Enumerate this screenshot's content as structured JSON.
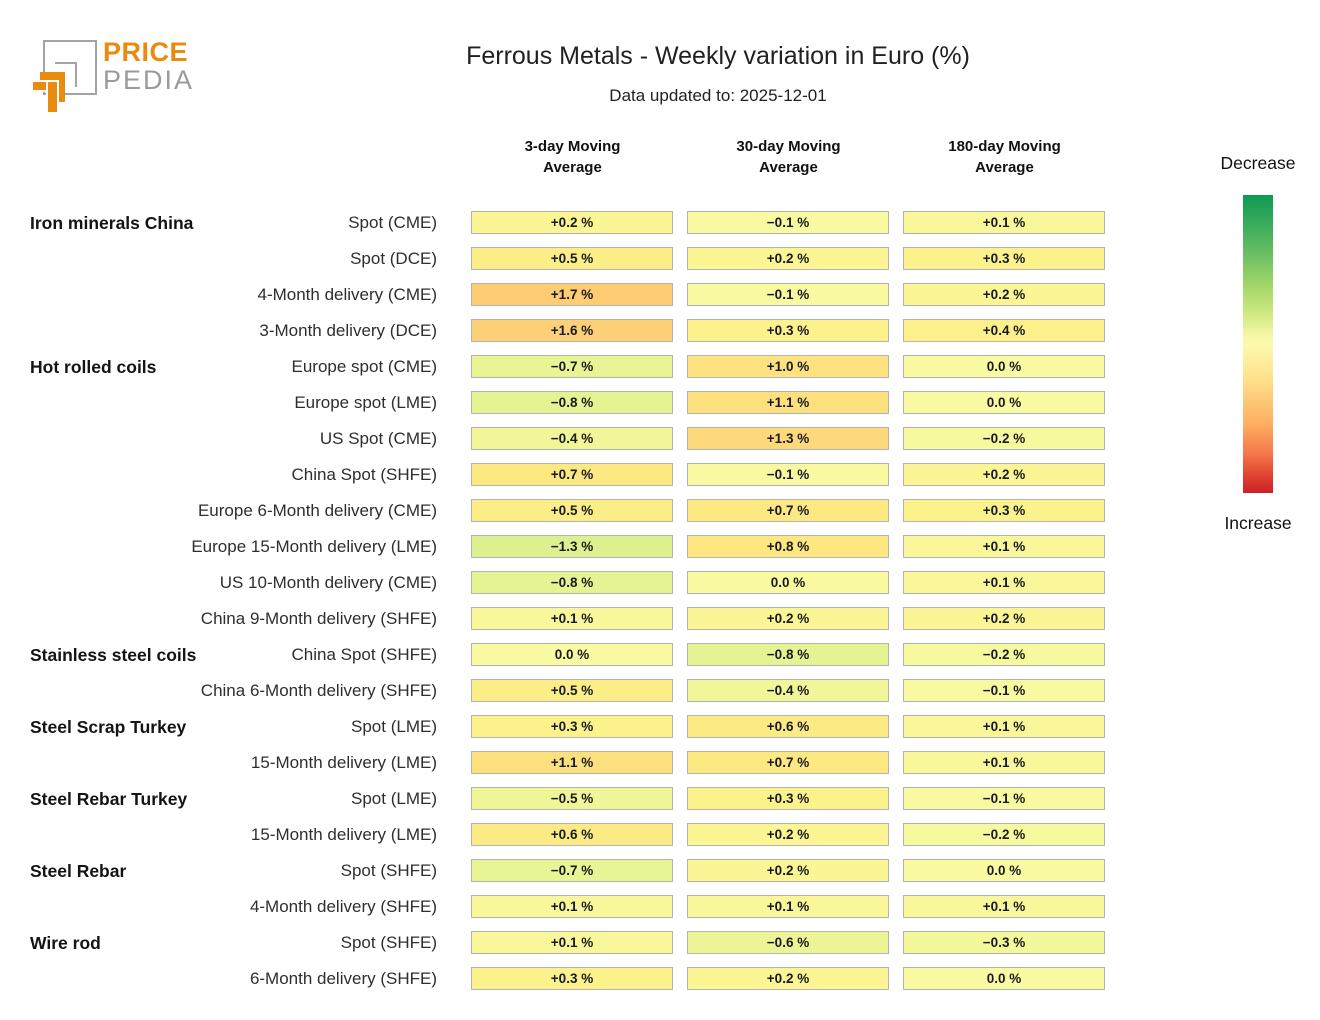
{
  "brand": {
    "name_top": "PRICE",
    "name_bottom": "PEDIA"
  },
  "colors": {
    "brand_orange": "#e98b0f",
    "brand_gray": "#9b9b9b",
    "cell_border": "#b3b3b3",
    "legend_green": "#0e9a54",
    "legend_mid_yellow": "#fdfaae",
    "legend_red": "#cd2026"
  },
  "chart_data": {
    "type": "heatmap",
    "title": "Ferrous Metals - Weekly variation in Euro (%)",
    "subtitle": "Data updated to: 2025-12-01",
    "unit": "%",
    "columns": [
      "3-day Moving Average",
      "30-day Moving Average",
      "180-day Moving Average"
    ],
    "colorscale": {
      "low_label": "Decrease",
      "high_label": "Increase",
      "low_color": "#0e9a54",
      "mid_color": "#fdfaae",
      "high_color": "#cd2026",
      "orientation": "vertical",
      "note": "green = decrease (top), red = increase (bottom)"
    },
    "rows": [
      {
        "group": "Iron minerals China",
        "label": "Spot (CME)",
        "values": [
          0.2,
          -0.1,
          0.1
        ],
        "cells": [
          "+0.2 %",
          "−0.1 %",
          "+0.1 %"
        ]
      },
      {
        "group": "",
        "label": "Spot (DCE)",
        "values": [
          0.5,
          0.2,
          0.3
        ],
        "cells": [
          "+0.5 %",
          "+0.2 %",
          "+0.3 %"
        ]
      },
      {
        "group": "",
        "label": "4-Month delivery (CME)",
        "values": [
          1.7,
          -0.1,
          0.2
        ],
        "cells": [
          "+1.7 %",
          "−0.1 %",
          "+0.2 %"
        ]
      },
      {
        "group": "",
        "label": "3-Month delivery (DCE)",
        "values": [
          1.6,
          0.3,
          0.4
        ],
        "cells": [
          "+1.6 %",
          "+0.3 %",
          "+0.4 %"
        ]
      },
      {
        "group": "Hot rolled coils",
        "label": "Europe spot (CME)",
        "values": [
          -0.7,
          1.0,
          0.0
        ],
        "cells": [
          "−0.7 %",
          "+1.0 %",
          "0.0 %"
        ]
      },
      {
        "group": "",
        "label": "Europe spot (LME)",
        "values": [
          -0.8,
          1.1,
          0.0
        ],
        "cells": [
          "−0.8 %",
          "+1.1 %",
          "0.0 %"
        ]
      },
      {
        "group": "",
        "label": "US Spot (CME)",
        "values": [
          -0.4,
          1.3,
          -0.2
        ],
        "cells": [
          "−0.4 %",
          "+1.3 %",
          "−0.2 %"
        ]
      },
      {
        "group": "",
        "label": "China Spot (SHFE)",
        "values": [
          0.7,
          -0.1,
          0.2
        ],
        "cells": [
          "+0.7 %",
          "−0.1 %",
          "+0.2 %"
        ]
      },
      {
        "group": "",
        "label": "Europe 6-Month delivery (CME)",
        "values": [
          0.5,
          0.7,
          0.3
        ],
        "cells": [
          "+0.5 %",
          "+0.7 %",
          "+0.3 %"
        ]
      },
      {
        "group": "",
        "label": "Europe 15-Month delivery (LME)",
        "values": [
          -1.3,
          0.8,
          0.1
        ],
        "cells": [
          "−1.3 %",
          "+0.8 %",
          "+0.1 %"
        ]
      },
      {
        "group": "",
        "label": "US 10-Month delivery (CME)",
        "values": [
          -0.8,
          0.0,
          0.1
        ],
        "cells": [
          "−0.8 %",
          "0.0 %",
          "+0.1 %"
        ]
      },
      {
        "group": "",
        "label": "China 9-Month delivery (SHFE)",
        "values": [
          0.1,
          0.2,
          0.2
        ],
        "cells": [
          "+0.1 %",
          "+0.2 %",
          "+0.2 %"
        ]
      },
      {
        "group": "Stainless steel coils",
        "label": "China Spot (SHFE)",
        "values": [
          0.0,
          -0.8,
          -0.2
        ],
        "cells": [
          "0.0 %",
          "−0.8 %",
          "−0.2 %"
        ]
      },
      {
        "group": "",
        "label": "China 6-Month delivery (SHFE)",
        "values": [
          0.5,
          -0.4,
          -0.1
        ],
        "cells": [
          "+0.5 %",
          "−0.4 %",
          "−0.1 %"
        ]
      },
      {
        "group": "Steel Scrap Turkey",
        "label": "Spot (LME)",
        "values": [
          0.3,
          0.6,
          0.1
        ],
        "cells": [
          "+0.3 %",
          "+0.6 %",
          "+0.1 %"
        ]
      },
      {
        "group": "",
        "label": "15-Month delivery (LME)",
        "values": [
          1.1,
          0.7,
          0.1
        ],
        "cells": [
          "+1.1 %",
          "+0.7 %",
          "+0.1 %"
        ]
      },
      {
        "group": "Steel Rebar Turkey",
        "label": "Spot (LME)",
        "values": [
          -0.5,
          0.3,
          -0.1
        ],
        "cells": [
          "−0.5 %",
          "+0.3 %",
          "−0.1 %"
        ]
      },
      {
        "group": "",
        "label": "15-Month delivery (LME)",
        "values": [
          0.6,
          0.2,
          -0.2
        ],
        "cells": [
          "+0.6 %",
          "+0.2 %",
          "−0.2 %"
        ]
      },
      {
        "group": "Steel Rebar",
        "label": "Spot (SHFE)",
        "values": [
          -0.7,
          0.2,
          0.0
        ],
        "cells": [
          "−0.7 %",
          "+0.2 %",
          "0.0 %"
        ]
      },
      {
        "group": "",
        "label": "4-Month delivery (SHFE)",
        "values": [
          0.1,
          0.1,
          0.1
        ],
        "cells": [
          "+0.1 %",
          "+0.1 %",
          "+0.1 %"
        ]
      },
      {
        "group": "Wire rod",
        "label": "Spot (SHFE)",
        "values": [
          0.1,
          -0.6,
          -0.3
        ],
        "cells": [
          "+0.1 %",
          "−0.6 %",
          "−0.3 %"
        ]
      },
      {
        "group": "",
        "label": "6-Month delivery (SHFE)",
        "values": [
          0.3,
          0.2,
          0.0
        ],
        "cells": [
          "+0.3 %",
          "+0.2 %",
          "0.0 %"
        ]
      }
    ]
  }
}
